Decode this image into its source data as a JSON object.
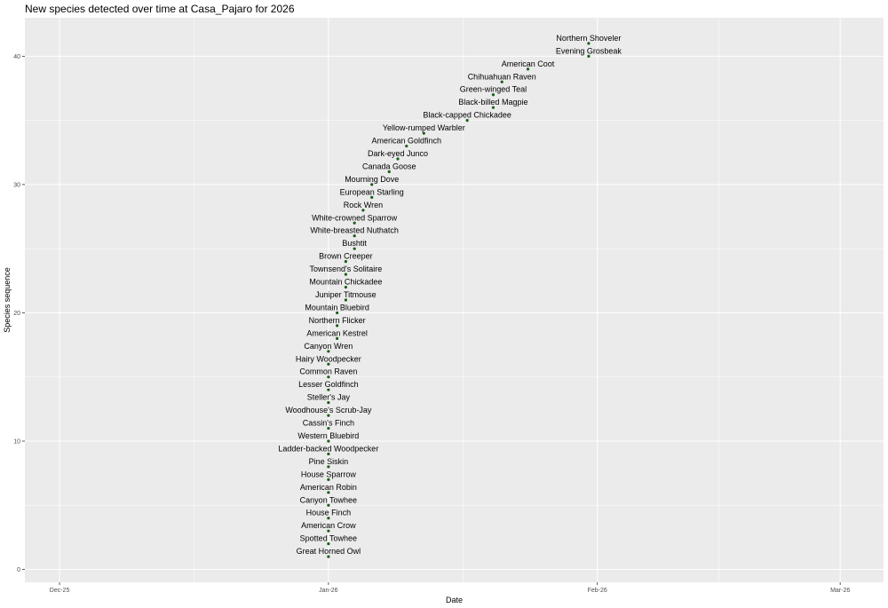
{
  "chart_data": {
    "type": "scatter",
    "title": "New species detected over time at Casa_Pajaro for 2026",
    "xlabel": "Date",
    "ylabel": "Species sequence",
    "x_ticks": [
      "Dec-25",
      "Jan-26",
      "Feb-26",
      "Mar-26"
    ],
    "y_ticks": [
      0,
      10,
      20,
      30,
      40
    ],
    "x_range": [
      "2025-11-27",
      "2026-03-06"
    ],
    "ylim": [
      -1,
      43
    ],
    "grid": true,
    "point_color": "#1a5e1a",
    "panel_color": "#ebebeb",
    "grid_color": "#ffffff",
    "points": [
      {
        "x": "2026-01-01",
        "y": 1,
        "label": "Great Horned Owl"
      },
      {
        "x": "2026-01-01",
        "y": 2,
        "label": "Spotted Towhee"
      },
      {
        "x": "2026-01-01",
        "y": 3,
        "label": "American Crow"
      },
      {
        "x": "2026-01-01",
        "y": 4,
        "label": "House Finch"
      },
      {
        "x": "2026-01-01",
        "y": 5,
        "label": "Canyon Towhee"
      },
      {
        "x": "2026-01-01",
        "y": 6,
        "label": "American Robin"
      },
      {
        "x": "2026-01-01",
        "y": 7,
        "label": "House Sparrow"
      },
      {
        "x": "2026-01-01",
        "y": 8,
        "label": "Pine Siskin"
      },
      {
        "x": "2026-01-01",
        "y": 9,
        "label": "Ladder-backed Woodpecker"
      },
      {
        "x": "2026-01-01",
        "y": 10,
        "label": "Western Bluebird"
      },
      {
        "x": "2026-01-01",
        "y": 11,
        "label": "Cassin's Finch"
      },
      {
        "x": "2026-01-01",
        "y": 12,
        "label": "Woodhouse's Scrub-Jay"
      },
      {
        "x": "2026-01-01",
        "y": 13,
        "label": "Steller's Jay"
      },
      {
        "x": "2026-01-01",
        "y": 14,
        "label": "Lesser Goldfinch"
      },
      {
        "x": "2026-01-01",
        "y": 15,
        "label": "Common Raven"
      },
      {
        "x": "2026-01-01",
        "y": 16,
        "label": "Hairy Woodpecker"
      },
      {
        "x": "2026-01-01",
        "y": 17,
        "label": "Canyon Wren"
      },
      {
        "x": "2026-01-02",
        "y": 18,
        "label": "American Kestrel"
      },
      {
        "x": "2026-01-02",
        "y": 19,
        "label": "Northern Flicker"
      },
      {
        "x": "2026-01-02",
        "y": 20,
        "label": "Mountain Bluebird"
      },
      {
        "x": "2026-01-03",
        "y": 21,
        "label": "Juniper Titmouse"
      },
      {
        "x": "2026-01-03",
        "y": 22,
        "label": "Mountain Chickadee"
      },
      {
        "x": "2026-01-03",
        "y": 23,
        "label": "Townsend's Solitaire"
      },
      {
        "x": "2026-01-03",
        "y": 24,
        "label": "Brown Creeper"
      },
      {
        "x": "2026-01-04",
        "y": 25,
        "label": "Bushtit"
      },
      {
        "x": "2026-01-04",
        "y": 26,
        "label": "White-breasted Nuthatch"
      },
      {
        "x": "2026-01-04",
        "y": 27,
        "label": "White-crowned Sparrow"
      },
      {
        "x": "2026-01-05",
        "y": 28,
        "label": "Rock Wren"
      },
      {
        "x": "2026-01-06",
        "y": 29,
        "label": "European Starling"
      },
      {
        "x": "2026-01-06",
        "y": 30,
        "label": "Mourning Dove"
      },
      {
        "x": "2026-01-08",
        "y": 31,
        "label": "Canada Goose"
      },
      {
        "x": "2026-01-09",
        "y": 32,
        "label": "Dark-eyed Junco"
      },
      {
        "x": "2026-01-10",
        "y": 33,
        "label": "American Goldfinch"
      },
      {
        "x": "2026-01-12",
        "y": 34,
        "label": "Yellow-rumped Warbler"
      },
      {
        "x": "2026-01-17",
        "y": 35,
        "label": "Black-capped Chickadee"
      },
      {
        "x": "2026-01-20",
        "y": 36,
        "label": "Black-billed Magpie"
      },
      {
        "x": "2026-01-20",
        "y": 37,
        "label": "Green-winged Teal"
      },
      {
        "x": "2026-01-21",
        "y": 38,
        "label": "Chihuahuan Raven"
      },
      {
        "x": "2026-01-24",
        "y": 39,
        "label": "American Coot"
      },
      {
        "x": "2026-01-31",
        "y": 40,
        "label": "Evening Grosbeak"
      },
      {
        "x": "2026-01-31",
        "y": 41,
        "label": "Northern Shoveler"
      }
    ]
  }
}
